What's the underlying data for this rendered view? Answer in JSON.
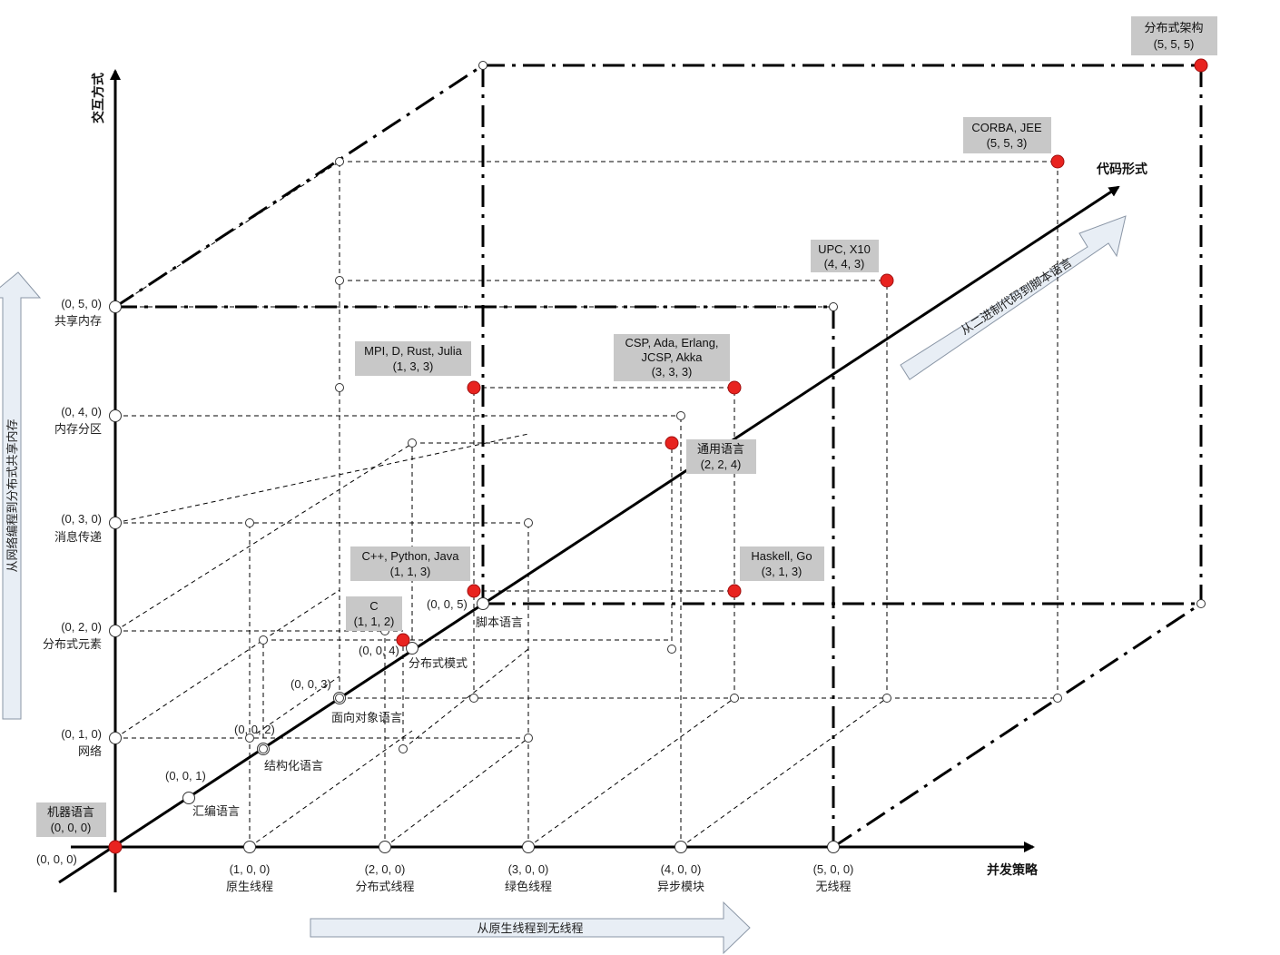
{
  "axes": {
    "x_title": "并发策略",
    "y_title": "交互方式",
    "z_title": "代码形式"
  },
  "origin_label": "(0, 0, 0)",
  "x_ticks": [
    {
      "coord": "(1, 0, 0)",
      "name": "原生线程"
    },
    {
      "coord": "(2, 0, 0)",
      "name": "分布式线程"
    },
    {
      "coord": "(3, 0, 0)",
      "name": "绿色线程"
    },
    {
      "coord": "(4, 0, 0)",
      "name": "异步模块"
    },
    {
      "coord": "(5, 0, 0)",
      "name": "无线程"
    }
  ],
  "y_ticks": [
    {
      "coord": "(0, 1, 0)",
      "name": "网络"
    },
    {
      "coord": "(0, 2, 0)",
      "name": "分布式元素"
    },
    {
      "coord": "(0, 3, 0)",
      "name": "消息传递"
    },
    {
      "coord": "(0, 4, 0)",
      "name": "内存分区"
    },
    {
      "coord": "(0, 5, 0)",
      "name": "共享内存"
    }
  ],
  "z_ticks": [
    {
      "coord": "(0, 0, 1)",
      "name": "汇编语言"
    },
    {
      "coord": "(0, 0, 2)",
      "name": "结构化语言"
    },
    {
      "coord": "(0, 0, 3)",
      "name": "面向对象语言"
    },
    {
      "coord": "(0, 0, 4)",
      "name": "分布式模式"
    },
    {
      "coord": "(0, 0, 5)",
      "name": "脚本语言"
    }
  ],
  "points": [
    {
      "lines": [
        "机器语言",
        "(0, 0, 0)"
      ]
    },
    {
      "lines": [
        "C",
        "(1, 1, 2)"
      ]
    },
    {
      "lines": [
        "C++, Python, Java",
        "(1, 1, 3)"
      ]
    },
    {
      "lines": [
        "MPI, D, Rust, Julia",
        "(1, 3, 3)"
      ]
    },
    {
      "lines": [
        "通用语言",
        "(2, 2, 4)"
      ]
    },
    {
      "lines": [
        "CSP, Ada, Erlang,",
        "JCSP, Akka",
        "(3, 3, 3)"
      ]
    },
    {
      "lines": [
        "Haskell, Go",
        "(3, 1, 3)"
      ]
    },
    {
      "lines": [
        "UPC, X10",
        "(4, 4, 3)"
      ]
    },
    {
      "lines": [
        "CORBA, JEE",
        "(5, 5, 3)"
      ]
    },
    {
      "lines": [
        "分布式架构",
        "(5, 5, 5)"
      ]
    }
  ],
  "arrows": {
    "horizontal": "从原生线程到无线程",
    "vertical": "从网络编程到分布式共享内存",
    "diagonal": "从二进制代码到脚本语言"
  },
  "colors": {
    "highlight_point": "#e8231f",
    "label_box": "#c8c8c8",
    "arrow_fill": "#e8eef5",
    "line": "#000000"
  }
}
